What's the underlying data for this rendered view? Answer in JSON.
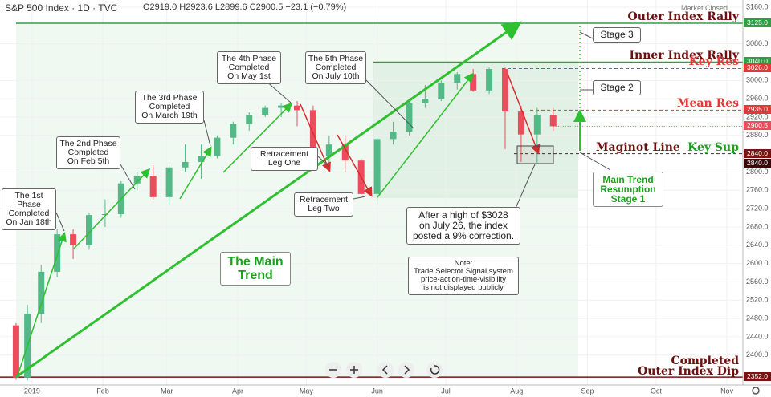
{
  "chart_data": {
    "type": "candlestick",
    "symbol": "S&P 500 Index · 1D · TVC",
    "ohlc_text": "O2919.0  H2923.6  L2899.6  C2900.5  −23.1 (−0.79%)",
    "status": "Market Closed",
    "x": [
      -7,
      -2,
      4,
      11,
      18,
      25,
      32,
      39,
      46,
      53,
      60,
      67,
      74,
      81,
      88,
      95,
      102,
      109,
      116,
      123,
      130,
      137,
      144,
      151,
      158,
      165,
      172,
      179,
      186,
      193,
      200,
      207,
      214,
      221,
      228
    ],
    "open": [
      2465,
      2351,
      2490,
      2582,
      2664,
      2640,
      2706,
      2708,
      2775,
      2792,
      2745,
      2810,
      2822,
      2835,
      2875,
      2905,
      2925,
      2940,
      2945,
      2935,
      2835,
      2860,
      2825,
      2752,
      2872,
      2888,
      2950,
      2960,
      2995,
      3014,
      2978,
      3025,
      2932,
      2882,
      2925
    ],
    "high": [
      2470,
      2510,
      2597,
      2675,
      2675,
      2710,
      2740,
      2780,
      2800,
      2815,
      2815,
      2860,
      2860,
      2880,
      2910,
      2930,
      2945,
      2950,
      2955,
      2945,
      2880,
      2880,
      2830,
      2875,
      2910,
      2960,
      2990,
      3000,
      3018,
      3025,
      3028,
      3028,
      2945,
      2940,
      2940
    ],
    "low": [
      2346,
      2345,
      2470,
      2570,
      2610,
      2630,
      2680,
      2700,
      2760,
      2740,
      2730,
      2800,
      2785,
      2830,
      2860,
      2890,
      2920,
      2920,
      2900,
      2820,
      2810,
      2800,
      2750,
      2730,
      2860,
      2880,
      2940,
      2955,
      2980,
      2975,
      2970,
      2850,
      2822,
      2820,
      2890
    ],
    "close": [
      2351,
      2490,
      2582,
      2664,
      2640,
      2706,
      2708,
      2775,
      2792,
      2745,
      2810,
      2822,
      2835,
      2875,
      2905,
      2925,
      2940,
      2945,
      2935,
      2835,
      2860,
      2825,
      2752,
      2872,
      2888,
      2950,
      2960,
      2995,
      3014,
      2978,
      3025,
      2932,
      2882,
      2925,
      2900
    ],
    "up_color": "#53b987",
    "down_color": "#eb4d5c",
    "last_label": "2900.5",
    "xlim": [
      -14,
      311
    ],
    "xticks": [
      {
        "value": 0,
        "label": "2019"
      },
      {
        "value": 31,
        "label": "Feb"
      },
      {
        "value": 59,
        "label": "Mar"
      },
      {
        "value": 90,
        "label": "Apr"
      },
      {
        "value": 120,
        "label": "May"
      },
      {
        "value": 151,
        "label": "Jun"
      },
      {
        "value": 181,
        "label": "Jul"
      },
      {
        "value": 212,
        "label": "Aug"
      },
      {
        "value": 243,
        "label": "Sep"
      },
      {
        "value": 273,
        "label": "Oct"
      },
      {
        "value": 304,
        "label": "Nov"
      }
    ],
    "ylim": [
      2340,
      3160
    ],
    "yticks": [
      {
        "value": 2400,
        "label": "2400.0"
      },
      {
        "value": 2440,
        "label": "2440.0"
      },
      {
        "value": 2480,
        "label": "2480.0"
      },
      {
        "value": 2520,
        "label": "2520.0"
      },
      {
        "value": 2560,
        "label": "2560.0"
      },
      {
        "value": 2600,
        "label": "2600.0"
      },
      {
        "value": 2640,
        "label": "2640.0"
      },
      {
        "value": 2680,
        "label": "2680.0"
      },
      {
        "value": 2720,
        "label": "2720.0"
      },
      {
        "value": 2760,
        "label": "2760.0"
      },
      {
        "value": 2800,
        "label": "2800.0"
      },
      {
        "value": 2880,
        "label": "2880.0"
      },
      {
        "value": 2920,
        "label": "2920.0"
      },
      {
        "value": 2960,
        "label": "2960.0"
      },
      {
        "value": 3000,
        "label": "3000.0"
      },
      {
        "value": 3080,
        "label": "3080.0"
      },
      {
        "value": 3160,
        "label": "3160.0"
      }
    ],
    "grid": true,
    "levels": [
      {
        "value": 3125,
        "price_labels": [
          "3125.0"
        ],
        "texts": [
          "Outer Index Rally"
        ],
        "color": "#2ea043",
        "label_color": "#6b0f0f",
        "dashed": false
      },
      {
        "value": 3040,
        "price_labels": [
          "3040.0"
        ],
        "texts": [
          "Inner Index Rally"
        ],
        "color": "#2ea043",
        "label_color": "#6b0f0f",
        "dashed": false
      },
      {
        "value": 3026,
        "price_labels": [
          "3026.0"
        ],
        "texts": [
          "Key Res"
        ],
        "color": "#e53935",
        "label_color": "#e53935",
        "dashed": true
      },
      {
        "value": 2935,
        "price_labels": [
          "2935.0"
        ],
        "texts": [
          "Mean Res"
        ],
        "color": "#e53935",
        "label_color": "#e53935",
        "dashed": true
      },
      {
        "value": 2840,
        "price_labels": [
          "2840.0",
          "2840.0"
        ],
        "texts": [
          "Maginot Line",
          "Key Sup"
        ],
        "color": "#7a1414",
        "label_color": "#6b0f0f",
        "dashed": true
      },
      {
        "value": 2352,
        "price_labels": [
          "2352.0"
        ],
        "texts": [
          "Completed\nOuter Index Dip"
        ],
        "color": "#7a1414",
        "label_color": "#6b0f0f",
        "dashed": false
      }
    ],
    "annotations": [
      "The 1st Phase\nCompleted\nOn Jan 18th",
      "The 2nd Phase\nCompleted\nOn Feb 5th",
      "The 3rd Phase\nCompleted\nOn March 19th",
      "The 4th Phase\nCompleted\nOn May 1st",
      "The 5th Phase\nCompleted\nOn July 10th",
      "Retracement\nLeg One",
      "Retracement\nLeg Two",
      "After a high of $3028\non July 26, the index\nposted a 9% correction.",
      "Note:\nTrade Selector Signal system\nprice-action-time-visibility\nis not displayed publicly",
      "The Main\nTrend",
      "Stage 3",
      "Stage 2",
      "Main Trend\nResumption\nStage 1"
    ]
  }
}
